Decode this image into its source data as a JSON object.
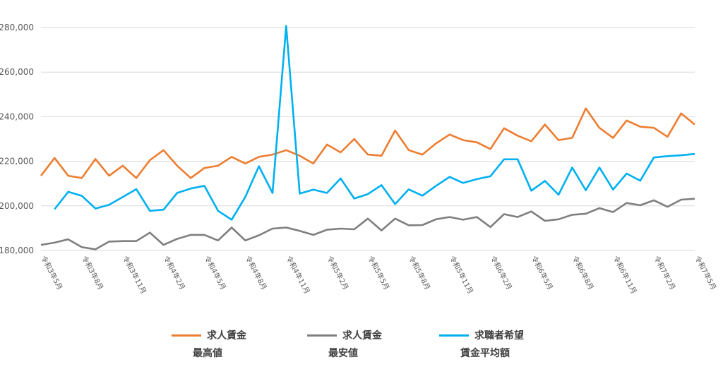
{
  "chart_data": {
    "type": "line",
    "ylim": [
      180000,
      280000
    ],
    "yticks": [
      "180,000",
      "200,000",
      "220,000",
      "240,000",
      "260,000",
      "280,000"
    ],
    "x_labels": [
      "令和3年5月",
      "令和3年8月",
      "令和3年11月",
      "令和4年2月",
      "令和4年5月",
      "令和4年8月",
      "令和4年11月",
      "令和5年2月",
      "令和5年5月",
      "令和5年8月",
      "令和5年11月",
      "令和6年2月",
      "令和6年5月",
      "令和6年8月",
      "令和6年11月",
      "令和7年2月",
      "令和7年5月"
    ],
    "grid": true,
    "legend_position": "bottom",
    "series": [
      {
        "name_line1": "求人賃金",
        "name_line2": "最高値",
        "color": "#ED7D31",
        "values": [
          213500,
          221500,
          213500,
          212500,
          221000,
          213500,
          218000,
          212500,
          220500,
          225000,
          218000,
          212500,
          217000,
          218000,
          222000,
          219000,
          222000,
          223000,
          225000,
          222500,
          219000,
          227500,
          224000,
          230000,
          223000,
          222500,
          233800,
          225000,
          223000,
          228000,
          232000,
          229500,
          228500,
          225500,
          234800,
          231500,
          229000,
          236500,
          229500,
          230500,
          243700,
          235000,
          230500,
          238300,
          235500,
          235000,
          231000,
          241500,
          236500
        ]
      },
      {
        "name_line1": "求人賃金",
        "name_line2": "最安値",
        "color": "#7F7F7F",
        "values": [
          182500,
          183500,
          185000,
          181500,
          180500,
          184000,
          184200,
          184200,
          188000,
          182500,
          185200,
          187000,
          187000,
          184500,
          190300,
          184500,
          186800,
          189800,
          190300,
          188800,
          187000,
          189300,
          189800,
          189500,
          194300,
          189000,
          194300,
          191300,
          191400,
          194000,
          195000,
          193800,
          195000,
          190500,
          196300,
          195000,
          197500,
          193300,
          194000,
          196000,
          196500,
          199000,
          197200,
          201300,
          200300,
          202500,
          199600,
          202800,
          203200
        ]
      },
      {
        "name_line1": "求職者希望",
        "name_line2": "賃金平均額",
        "color": "#00B0F0",
        "values": [
          null,
          198500,
          206300,
          204500,
          198800,
          200500,
          204000,
          207500,
          197800,
          198300,
          205800,
          207800,
          209000,
          197800,
          193800,
          204000,
          217800,
          205800,
          280700,
          205500,
          207300,
          205800,
          212300,
          203300,
          205300,
          209300,
          200800,
          207400,
          204600,
          209000,
          213000,
          210300,
          212000,
          213300,
          220900,
          220900,
          206800,
          211200,
          205000,
          217200,
          207000,
          217200,
          207300,
          214500,
          211300,
          221700,
          222300,
          222700,
          223300
        ]
      }
    ]
  }
}
